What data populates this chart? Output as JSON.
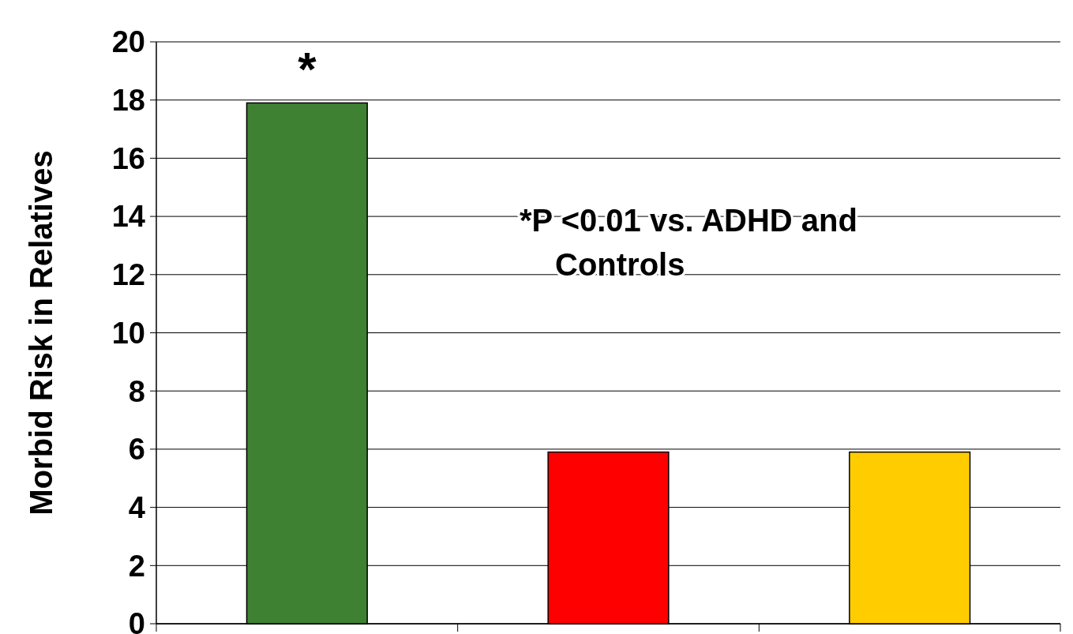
{
  "chart_data": {
    "type": "bar",
    "ylabel": "Morbid Risk in Relatives",
    "categories": [
      null,
      null,
      null
    ],
    "values": [
      17.9,
      5.9,
      5.9
    ],
    "colors": [
      "#3f8132",
      "#ff0000",
      "#ffcc00"
    ],
    "ylim": [
      0,
      20
    ],
    "yticks": [
      0,
      2,
      4,
      6,
      8,
      10,
      12,
      14,
      16,
      18,
      20
    ],
    "grid": "y",
    "annotations": [
      "*",
      "*P <0.01 vs. ADHD and Controls"
    ]
  }
}
